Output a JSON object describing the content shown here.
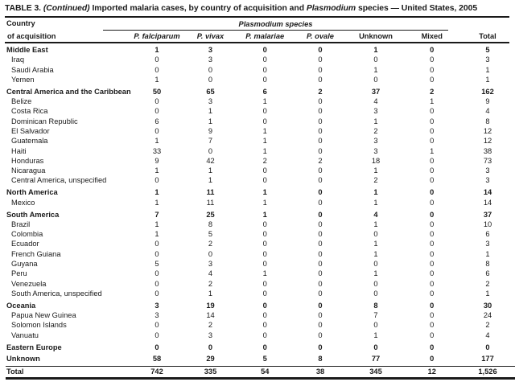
{
  "title": {
    "table_no": "TABLE 3.",
    "continued": "(Continued)",
    "text_before_species": "Imported malaria cases, by country of acquisition and",
    "species_italic": "Plasmodium",
    "text_after_species": "species — United States, 2005"
  },
  "header": {
    "country_label_line1": "Country",
    "country_label_line2": "of acquisition",
    "species_group_label": "Plasmodium species",
    "species_columns": [
      "P. falciparum",
      "P. vivax",
      "P. malariae",
      "P. ovale"
    ],
    "other_columns": [
      "Unknown",
      "Mixed"
    ],
    "total_column": "Total"
  },
  "table": {
    "sections": [
      {
        "label": "Middle East",
        "values": [
          "1",
          "3",
          "0",
          "0",
          "1",
          "0",
          "5"
        ],
        "rows": [
          {
            "label": "Iraq",
            "values": [
              "0",
              "3",
              "0",
              "0",
              "0",
              "0",
              "3"
            ]
          },
          {
            "label": "Saudi Arabia",
            "values": [
              "0",
              "0",
              "0",
              "0",
              "1",
              "0",
              "1"
            ]
          },
          {
            "label": "Yemen",
            "values": [
              "1",
              "0",
              "0",
              "0",
              "0",
              "0",
              "1"
            ]
          }
        ]
      },
      {
        "label": "Central America and the Caribbean",
        "values": [
          "50",
          "65",
          "6",
          "2",
          "37",
          "2",
          "162"
        ],
        "rows": [
          {
            "label": "Belize",
            "values": [
              "0",
              "3",
              "1",
              "0",
              "4",
              "1",
              "9"
            ]
          },
          {
            "label": "Costa Rica",
            "values": [
              "0",
              "1",
              "0",
              "0",
              "3",
              "0",
              "4"
            ]
          },
          {
            "label": "Dominican Republic",
            "values": [
              "6",
              "1",
              "0",
              "0",
              "1",
              "0",
              "8"
            ]
          },
          {
            "label": "El Salvador",
            "values": [
              "0",
              "9",
              "1",
              "0",
              "2",
              "0",
              "12"
            ]
          },
          {
            "label": "Guatemala",
            "values": [
              "1",
              "7",
              "1",
              "0",
              "3",
              "0",
              "12"
            ]
          },
          {
            "label": "Haiti",
            "values": [
              "33",
              "0",
              "1",
              "0",
              "3",
              "1",
              "38"
            ]
          },
          {
            "label": "Honduras",
            "values": [
              "9",
              "42",
              "2",
              "2",
              "18",
              "0",
              "73"
            ]
          },
          {
            "label": "Nicaragua",
            "values": [
              "1",
              "1",
              "0",
              "0",
              "1",
              "0",
              "3"
            ]
          },
          {
            "label": "Central America, unspecified",
            "values": [
              "0",
              "1",
              "0",
              "0",
              "2",
              "0",
              "3"
            ]
          }
        ]
      },
      {
        "label": "North America",
        "values": [
          "1",
          "11",
          "1",
          "0",
          "1",
          "0",
          "14"
        ],
        "rows": [
          {
            "label": "Mexico",
            "values": [
              "1",
              "11",
              "1",
              "0",
              "1",
              "0",
              "14"
            ]
          }
        ]
      },
      {
        "label": "South America",
        "values": [
          "7",
          "25",
          "1",
          "0",
          "4",
          "0",
          "37"
        ],
        "rows": [
          {
            "label": "Brazil",
            "values": [
              "1",
              "8",
              "0",
              "0",
              "1",
              "0",
              "10"
            ]
          },
          {
            "label": "Colombia",
            "values": [
              "1",
              "5",
              "0",
              "0",
              "0",
              "0",
              "6"
            ]
          },
          {
            "label": "Ecuador",
            "values": [
              "0",
              "2",
              "0",
              "0",
              "1",
              "0",
              "3"
            ]
          },
          {
            "label": "French Guiana",
            "values": [
              "0",
              "0",
              "0",
              "0",
              "1",
              "0",
              "1"
            ]
          },
          {
            "label": "Guyana",
            "values": [
              "5",
              "3",
              "0",
              "0",
              "0",
              "0",
              "8"
            ]
          },
          {
            "label": "Peru",
            "values": [
              "0",
              "4",
              "1",
              "0",
              "1",
              "0",
              "6"
            ]
          },
          {
            "label": "Venezuela",
            "values": [
              "0",
              "2",
              "0",
              "0",
              "0",
              "0",
              "2"
            ]
          },
          {
            "label": "South America, unspecified",
            "values": [
              "0",
              "1",
              "0",
              "0",
              "0",
              "0",
              "1"
            ]
          }
        ]
      },
      {
        "label": "Oceania",
        "values": [
          "3",
          "19",
          "0",
          "0",
          "8",
          "0",
          "30"
        ],
        "rows": [
          {
            "label": "Papua New Guinea",
            "values": [
              "3",
              "14",
              "0",
              "0",
              "7",
              "0",
              "24"
            ]
          },
          {
            "label": "Solomon Islands",
            "values": [
              "0",
              "2",
              "0",
              "0",
              "0",
              "0",
              "2"
            ]
          },
          {
            "label": "Vanuatu",
            "values": [
              "0",
              "3",
              "0",
              "0",
              "1",
              "0",
              "4"
            ]
          }
        ]
      },
      {
        "label": "Eastern Europe",
        "values": [
          "0",
          "0",
          "0",
          "0",
          "0",
          "0",
          "0"
        ],
        "rows": []
      },
      {
        "label": "Unknown",
        "values": [
          "58",
          "29",
          "5",
          "8",
          "77",
          "0",
          "177"
        ],
        "rows": []
      }
    ],
    "total": {
      "label": "Total",
      "values": [
        "742",
        "335",
        "54",
        "38",
        "345",
        "12",
        "1,526"
      ]
    }
  }
}
